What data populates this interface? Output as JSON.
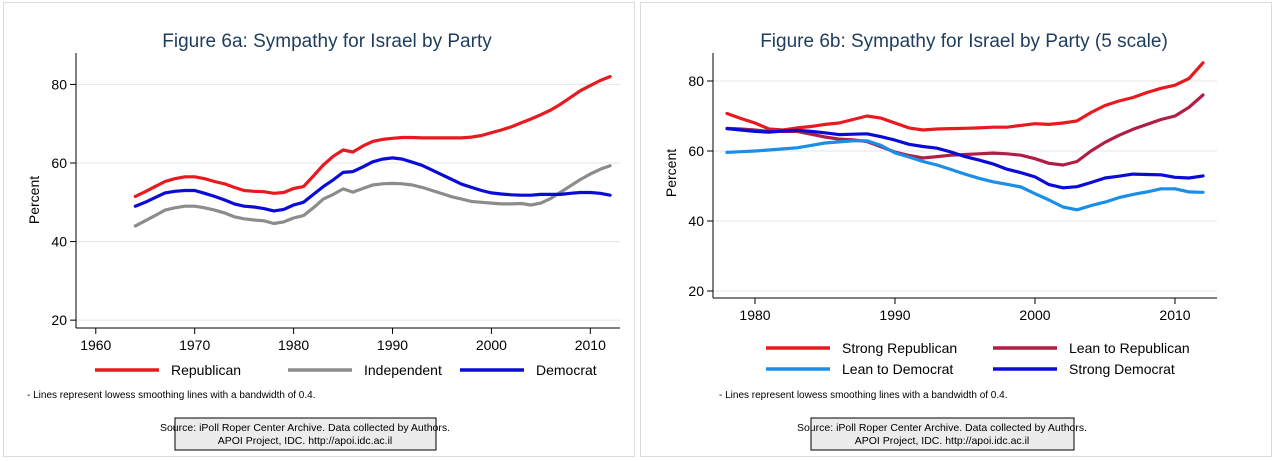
{
  "chart_data": [
    {
      "type": "line",
      "title": "Figure 6a: Sympathy for Israel by Party",
      "xlabel": "",
      "ylabel": "Percent",
      "xlim": [
        1958,
        2013
      ],
      "ylim": [
        18,
        88
      ],
      "xticks": [
        1960,
        1970,
        1980,
        1990,
        2000,
        2010
      ],
      "yticks": [
        20,
        40,
        60,
        80
      ],
      "grid": "horizontal",
      "legend_position": "bottom",
      "legend_columns": 3,
      "note": "- Lines represent lowess smoothing lines with a bandwidth of 0.4.",
      "source": [
        "Source: iPoll Roper Center Archive. Data collected by Authors.",
        "APOI Project, IDC. http://apoi.idc.ac.il"
      ],
      "series": [
        {
          "name": "Republican",
          "color": "#e8191f",
          "x": [
            1964,
            1965,
            1966,
            1967,
            1968,
            1969,
            1970,
            1971,
            1972,
            1973,
            1974,
            1975,
            1976,
            1977,
            1978,
            1979,
            1980,
            1981,
            1982,
            1983,
            1984,
            1985,
            1986,
            1987,
            1988,
            1989,
            1990,
            1991,
            1992,
            1993,
            1994,
            1995,
            1996,
            1997,
            1998,
            1999,
            2000,
            2001,
            2002,
            2003,
            2004,
            2005,
            2006,
            2007,
            2008,
            2009,
            2010,
            2011,
            2012
          ],
          "y": [
            51.5,
            52.7,
            54.0,
            55.3,
            56.0,
            56.5,
            56.5,
            56.0,
            55.3,
            54.7,
            53.8,
            53.0,
            52.8,
            52.7,
            52.3,
            52.5,
            53.5,
            54.0,
            56.7,
            59.5,
            61.7,
            63.3,
            62.8,
            64.3,
            65.5,
            66.0,
            66.3,
            66.5,
            66.5,
            66.4,
            66.4,
            66.4,
            66.4,
            66.4,
            66.6,
            67.0,
            67.7,
            68.4,
            69.2,
            70.2,
            71.2,
            72.3,
            73.5,
            75.0,
            76.7,
            78.4,
            79.7,
            81.0,
            82.0
          ]
        },
        {
          "name": "Independent",
          "color": "#8c8c8c",
          "x": [
            1964,
            1965,
            1966,
            1967,
            1968,
            1969,
            1970,
            1971,
            1972,
            1973,
            1974,
            1975,
            1976,
            1977,
            1978,
            1979,
            1980,
            1981,
            1982,
            1983,
            1984,
            1985,
            1986,
            1987,
            1988,
            1989,
            1990,
            1991,
            1992,
            1993,
            1994,
            1995,
            1996,
            1997,
            1998,
            1999,
            2000,
            2001,
            2002,
            2003,
            2004,
            2005,
            2006,
            2007,
            2008,
            2009,
            2010,
            2011,
            2012
          ],
          "y": [
            44.0,
            45.3,
            46.6,
            48.0,
            48.6,
            49.0,
            49.0,
            48.6,
            48.0,
            47.3,
            46.3,
            45.8,
            45.5,
            45.3,
            44.6,
            45.0,
            46.0,
            46.6,
            48.6,
            50.8,
            52.0,
            53.4,
            52.6,
            53.5,
            54.4,
            54.7,
            54.8,
            54.7,
            54.4,
            53.8,
            53.0,
            52.2,
            51.4,
            50.8,
            50.2,
            50.0,
            49.8,
            49.6,
            49.6,
            49.7,
            49.3,
            49.8,
            51.0,
            52.6,
            54.2,
            55.8,
            57.2,
            58.4,
            59.3
          ]
        },
        {
          "name": "Democrat",
          "color": "#0b0bd8",
          "x": [
            1964,
            1965,
            1966,
            1967,
            1968,
            1969,
            1970,
            1971,
            1972,
            1973,
            1974,
            1975,
            1976,
            1977,
            1978,
            1979,
            1980,
            1981,
            1982,
            1983,
            1984,
            1985,
            1986,
            1987,
            1988,
            1989,
            1990,
            1991,
            1992,
            1993,
            1994,
            1995,
            1996,
            1997,
            1998,
            1999,
            2000,
            2001,
            2002,
            2003,
            2004,
            2005,
            2006,
            2007,
            2008,
            2009,
            2010,
            2011,
            2012
          ],
          "y": [
            49.0,
            50.0,
            51.2,
            52.4,
            52.8,
            53.0,
            53.0,
            52.3,
            51.5,
            50.6,
            49.6,
            49.0,
            48.8,
            48.4,
            47.8,
            48.2,
            49.3,
            50.0,
            52.0,
            54.0,
            55.7,
            57.6,
            57.8,
            59.0,
            60.3,
            61.0,
            61.3,
            61.0,
            60.2,
            59.4,
            58.2,
            57.0,
            55.8,
            54.6,
            53.8,
            53.0,
            52.4,
            52.1,
            51.9,
            51.8,
            51.8,
            52.0,
            52.0,
            52.0,
            52.3,
            52.5,
            52.5,
            52.3,
            51.8
          ]
        }
      ]
    },
    {
      "type": "line",
      "title": "Figure 6b: Sympathy for Israel by Party (5 scale)",
      "xlabel": "",
      "ylabel": "Percent",
      "xlim": [
        1977,
        2013
      ],
      "ylim": [
        18,
        88
      ],
      "xticks": [
        1980,
        1990,
        2000,
        2010
      ],
      "yticks": [
        20,
        40,
        60,
        80
      ],
      "grid": "horizontal",
      "legend_position": "bottom",
      "legend_columns": 2,
      "note": "- Lines represent lowess smoothing lines with a bandwidth of 0.4.",
      "source": [
        "Source: iPoll Roper Center Archive. Data collected by Authors.",
        "APOI Project, IDC. http://apoi.idc.ac.il"
      ],
      "series": [
        {
          "name": "Strong Republican",
          "color": "#e8191f",
          "x": [
            1978,
            1979,
            1980,
            1981,
            1982,
            1983,
            1984,
            1985,
            1986,
            1987,
            1988,
            1989,
            1990,
            1991,
            1992,
            1993,
            1994,
            1995,
            1996,
            1997,
            1998,
            1999,
            2000,
            2001,
            2002,
            2003,
            2004,
            2005,
            2006,
            2007,
            2008,
            2009,
            2010,
            2011,
            2012
          ],
          "y": [
            70.7,
            69.3,
            68.0,
            66.3,
            66.0,
            66.6,
            67.0,
            67.6,
            68.0,
            69.0,
            70.0,
            69.4,
            68.0,
            66.6,
            66.0,
            66.3,
            66.4,
            66.5,
            66.6,
            66.8,
            66.8,
            67.3,
            67.8,
            67.6,
            68.0,
            68.6,
            71.0,
            73.0,
            74.3,
            75.3,
            76.7,
            77.9,
            78.8,
            80.7,
            85.2
          ]
        },
        {
          "name": "Lean to Republican",
          "color": "#b01e46",
          "x": [
            1978,
            1979,
            1980,
            1981,
            1982,
            1983,
            1984,
            1985,
            1986,
            1987,
            1988,
            1989,
            1990,
            1991,
            1992,
            1993,
            1994,
            1995,
            1996,
            1997,
            1998,
            1999,
            2000,
            2001,
            2002,
            2003,
            2004,
            2005,
            2006,
            2007,
            2008,
            2009,
            2010,
            2011,
            2012
          ],
          "y": [
            66.5,
            66.3,
            66.0,
            65.6,
            65.6,
            65.6,
            64.8,
            64.0,
            63.4,
            63.2,
            62.7,
            61.2,
            59.7,
            58.7,
            58.0,
            58.4,
            58.8,
            59.0,
            59.2,
            59.4,
            59.2,
            58.8,
            57.8,
            56.5,
            56.0,
            57.0,
            60.0,
            62.5,
            64.5,
            66.2,
            67.6,
            69.0,
            70.0,
            72.5,
            76.0
          ]
        },
        {
          "name": "Lean to Democrat",
          "color": "#1b8ee8",
          "x": [
            1978,
            1979,
            1980,
            1981,
            1982,
            1983,
            1984,
            1985,
            1986,
            1987,
            1988,
            1989,
            1990,
            1991,
            1992,
            1993,
            1994,
            1995,
            1996,
            1997,
            1998,
            1999,
            2000,
            2001,
            2002,
            2003,
            2004,
            2005,
            2006,
            2007,
            2008,
            2009,
            2010,
            2011,
            2012
          ],
          "y": [
            59.6,
            59.8,
            60.0,
            60.3,
            60.6,
            60.9,
            61.6,
            62.3,
            62.6,
            62.9,
            62.9,
            61.6,
            59.5,
            58.3,
            57.0,
            56.0,
            54.7,
            53.4,
            52.2,
            51.2,
            50.5,
            49.7,
            47.8,
            46.0,
            44.0,
            43.2,
            44.4,
            45.4,
            46.7,
            47.6,
            48.3,
            49.2,
            49.2,
            48.3,
            48.2
          ]
        },
        {
          "name": "Strong Democrat",
          "color": "#0b0bd8",
          "x": [
            1978,
            1979,
            1980,
            1981,
            1982,
            1983,
            1984,
            1985,
            1986,
            1987,
            1988,
            1989,
            1990,
            1991,
            1992,
            1993,
            1994,
            1995,
            1996,
            1997,
            1998,
            1999,
            2000,
            2001,
            2002,
            2003,
            2004,
            2005,
            2006,
            2007,
            2008,
            2009,
            2010,
            2011,
            2012
          ],
          "y": [
            66.4,
            66.0,
            65.6,
            65.4,
            65.7,
            65.9,
            65.6,
            65.2,
            64.7,
            64.8,
            64.9,
            64.1,
            63.1,
            61.9,
            61.3,
            60.8,
            59.7,
            58.4,
            57.4,
            56.3,
            54.8,
            53.8,
            52.6,
            50.4,
            49.5,
            49.8,
            51.0,
            52.3,
            52.8,
            53.4,
            53.3,
            53.2,
            52.5,
            52.3,
            52.9
          ]
        }
      ]
    }
  ]
}
